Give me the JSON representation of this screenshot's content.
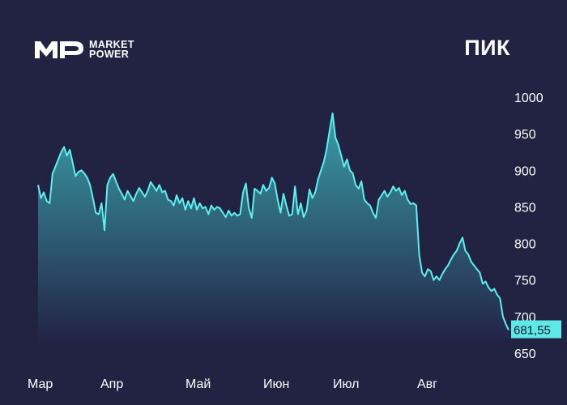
{
  "logo": {
    "line1": "MARKET",
    "line2": "POWER"
  },
  "ticker": "ПИК",
  "colors": {
    "background": "#222342",
    "line": "#5cf0ee",
    "fill_top": "#3a9ea8",
    "fill_bottom": "#232447",
    "label_bg": "#5ee8e8"
  },
  "chart_data": {
    "type": "area",
    "title": "ПИК",
    "ylim": [
      650,
      1000
    ],
    "yticks": [
      "1000",
      "950",
      "900",
      "850",
      "800",
      "750",
      "700",
      "650"
    ],
    "xticks": [
      "Мар",
      "Апр",
      "Май",
      "Июн",
      "Июл",
      "Авг"
    ],
    "last_value_label": "681,55",
    "series": [
      {
        "values": [
          880,
          862,
          870,
          858,
          855,
          895,
          905,
          915,
          925,
          932,
          920,
          928,
          910,
          892,
          898,
          900,
          896,
          890,
          880,
          862,
          842,
          840,
          855,
          818,
          880,
          890,
          895,
          885,
          875,
          868,
          860,
          872,
          865,
          858,
          868,
          876,
          870,
          864,
          872,
          884,
          878,
          872,
          880,
          870,
          872,
          860,
          858,
          852,
          866,
          855,
          862,
          846,
          858,
          848,
          862,
          846,
          855,
          848,
          850,
          840,
          852,
          846,
          850,
          848,
          842,
          836,
          845,
          838,
          842,
          838,
          840,
          870,
          882,
          848,
          835,
          875,
          872,
          868,
          880,
          872,
          876,
          890,
          882,
          860,
          842,
          868,
          852,
          838,
          840,
          878,
          840,
          855,
          836,
          845,
          874,
          862,
          870,
          888,
          900,
          912,
          930,
          955,
          978,
          945,
          935,
          920,
          905,
          915,
          900,
          896,
          880,
          875,
          885,
          860,
          855,
          852,
          842,
          835,
          860,
          866,
          872,
          864,
          870,
          878,
          872,
          876,
          866,
          872,
          860,
          854,
          855,
          852,
          785,
          760,
          755,
          765,
          762,
          750,
          755,
          750,
          758,
          765,
          770,
          778,
          785,
          790,
          800,
          808,
          790,
          785,
          775,
          770,
          765,
          760,
          745,
          748,
          740,
          735,
          738,
          730,
          725,
          700,
          690,
          681.55
        ]
      }
    ]
  }
}
